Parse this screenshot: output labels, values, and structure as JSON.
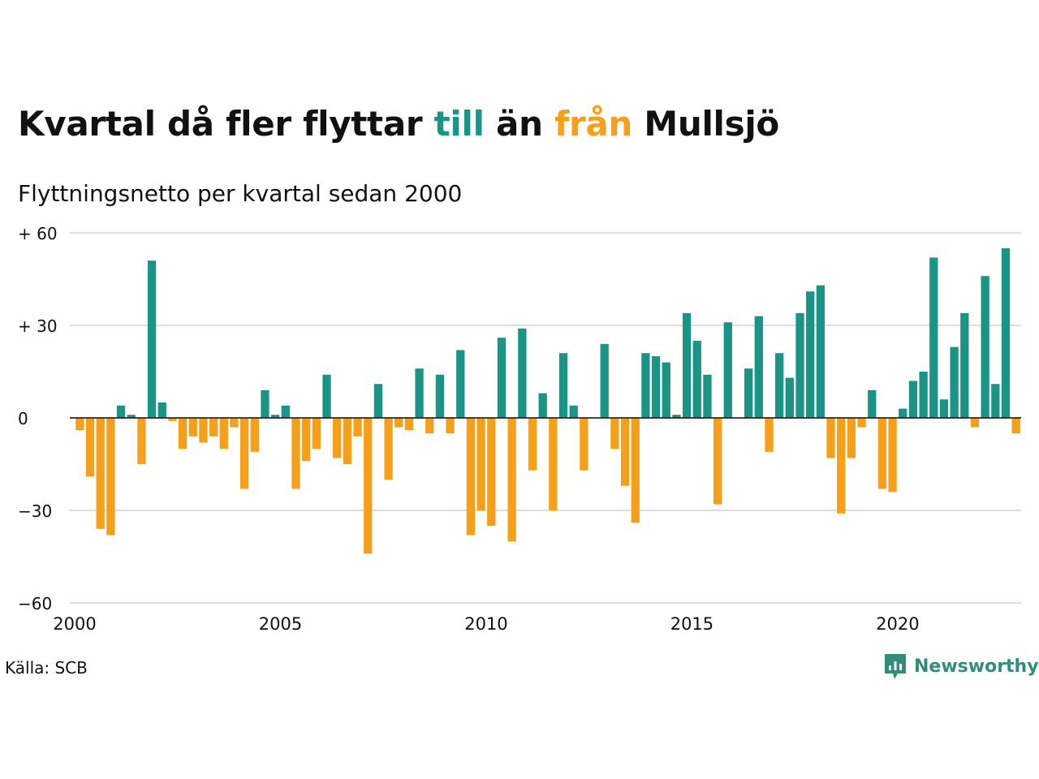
{
  "title": {
    "part1": "Kvartal då fler flyttar ",
    "part2": "till",
    "part3": " än ",
    "part4": "från",
    "part5": " Mullsjö"
  },
  "subtitle": "Flyttningsnetto per kvartal sedan 2000",
  "source": "Källa: SCB",
  "brand": {
    "name": "Newsworthy",
    "icon": "newsworthy-logo-icon"
  },
  "colors": {
    "positive": "#1a9484",
    "negative": "#f6a01a",
    "text": "#111111",
    "grid": "#dddddd",
    "brand": "#2f8f7c"
  },
  "chart_data": {
    "type": "bar",
    "title": "Kvartal då fler flyttar till än från Mullsjö",
    "subtitle": "Flyttningsnetto per kvartal sedan 2000",
    "start_year": 2000,
    "periods_per_year": 4,
    "values": [
      -4,
      -19,
      -36,
      -38,
      4,
      1,
      -15,
      51,
      5,
      -1,
      -10,
      -6,
      -8,
      -6,
      -10,
      -3,
      -23,
      -11,
      9,
      1,
      4,
      -23,
      -14,
      -10,
      14,
      -13,
      -15,
      -6,
      -44,
      11,
      -20,
      -3,
      -4,
      16,
      -5,
      14,
      -5,
      22,
      -38,
      -30,
      -35,
      26,
      -40,
      29,
      -17,
      8,
      -30,
      21,
      4,
      -17,
      0,
      24,
      -10,
      -22,
      -34,
      21,
      20,
      18,
      1,
      34,
      25,
      14,
      -28,
      31,
      0,
      16,
      33,
      -11,
      21,
      13,
      34,
      41,
      43,
      -13,
      -31,
      -13,
      -3,
      9,
      -23,
      -24,
      3,
      12,
      15,
      52,
      6,
      23,
      34,
      -3,
      46,
      11,
      55,
      -5
    ],
    "ylim": [
      -60,
      60
    ],
    "yticks": [
      60,
      30,
      0,
      -30,
      -60
    ],
    "ytick_labels": [
      "+ 60",
      "+ 30",
      "0",
      "−30",
      "−60"
    ],
    "xticks": [
      2000,
      2005,
      2010,
      2015,
      2020
    ],
    "grid": true,
    "legend": "none"
  }
}
